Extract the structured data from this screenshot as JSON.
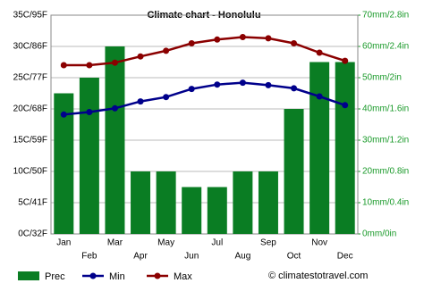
{
  "chart_data": {
    "type": "bar",
    "title": "Climate chart - Honolulu",
    "categories": [
      "Jan",
      "Feb",
      "Mar",
      "Apr",
      "May",
      "Jun",
      "Jul",
      "Aug",
      "Sep",
      "Oct",
      "Nov",
      "Dec"
    ],
    "series": [
      {
        "name": "Prec",
        "type": "bar",
        "axis": "y2",
        "color": "#0a7d23",
        "values": [
          45,
          50,
          60,
          20,
          20,
          15,
          15,
          20,
          20,
          40,
          55,
          55
        ]
      },
      {
        "name": "Min",
        "type": "line",
        "color": "#00008b",
        "values": [
          19.1,
          19.5,
          20.1,
          21.2,
          21.9,
          23.2,
          23.9,
          24.2,
          23.8,
          23.3,
          22,
          20.6
        ]
      },
      {
        "name": "Max",
        "type": "line",
        "color": "#8b0000",
        "values": [
          27,
          27,
          27.4,
          28.4,
          29.3,
          30.5,
          31.1,
          31.5,
          31.3,
          30.5,
          29,
          27.7
        ]
      }
    ],
    "ylim": [
      0,
      35
    ],
    "yticks": [
      {
        "value": 0,
        "label": "0C/32F"
      },
      {
        "value": 5,
        "label": "5C/41F"
      },
      {
        "value": 10,
        "label": "10C/50F"
      },
      {
        "value": 15,
        "label": "15C/59F"
      },
      {
        "value": 20,
        "label": "20C/68F"
      },
      {
        "value": 25,
        "label": "25C/77F"
      },
      {
        "value": 30,
        "label": "30C/86F"
      },
      {
        "value": 35,
        "label": "35C/95F"
      }
    ],
    "y2lim": [
      0,
      70
    ],
    "y2ticks": [
      {
        "value": 0,
        "label": "0mm/0in"
      },
      {
        "value": 10,
        "label": "10mm/0.4in"
      },
      {
        "value": 20,
        "label": "20mm/0.8in"
      },
      {
        "value": 30,
        "label": "30mm/1.2in"
      },
      {
        "value": 40,
        "label": "40mm/1.6in"
      },
      {
        "value": 50,
        "label": "50mm/2in"
      },
      {
        "value": 60,
        "label": "60mm/2.4in"
      },
      {
        "value": 70,
        "label": "70mm/2.8in"
      }
    ],
    "grid": true,
    "source": "© climatestotravel.com"
  }
}
